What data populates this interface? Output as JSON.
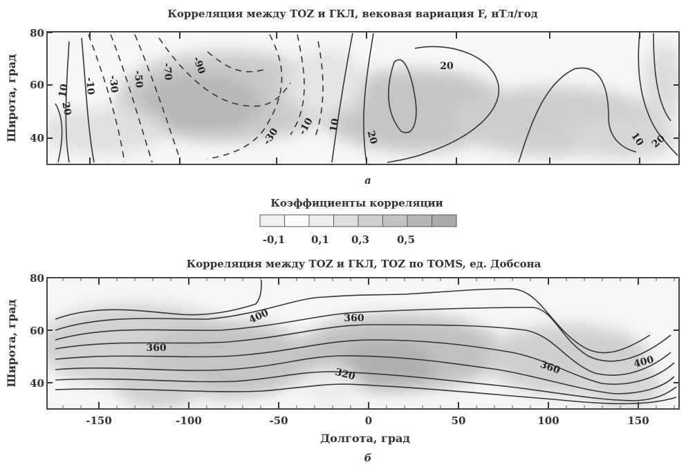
{
  "chart_data": [
    {
      "type": "heatmap",
      "title": "Корреляция между TOZ и ГКЛ, вековая вариация F, нТл/год",
      "panel_label": "а",
      "ylabel": "Широта, град",
      "xlabel": "",
      "xlim": [
        -175,
        175
      ],
      "ylim": [
        30,
        80
      ],
      "yticks": [
        "40",
        "60",
        "80"
      ],
      "contour_labels": [
        "10",
        "-10",
        "-30",
        "-50",
        "-70",
        "-90",
        "20",
        "-30",
        "-10",
        "10",
        "20",
        "20",
        "10",
        "20"
      ]
    },
    {
      "type": "heatmap",
      "title": "Корреляция между TOZ и ГКЛ, TOZ по TOMS, ед. Добсона",
      "panel_label": "б",
      "ylabel": "Широта, град",
      "xlabel": "Долгота, град",
      "xlim": [
        -175,
        175
      ],
      "ylim": [
        30,
        80
      ],
      "xticks": [
        "-150",
        "-100",
        "-50",
        "0",
        "50",
        "100",
        "150"
      ],
      "yticks": [
        "40",
        "60",
        "80"
      ],
      "contour_labels": [
        "400",
        "360",
        "360",
        "320",
        "360",
        "400"
      ]
    }
  ],
  "legend": {
    "title": "Коэффициенты корреляции",
    "tick_labels": [
      "-0,1",
      "0,1",
      "0,3",
      "0,5"
    ],
    "colors": [
      "#efefef",
      "#fbfbfb",
      "#ececec",
      "#dedede",
      "#cfcfcf",
      "#c2c2c2",
      "#b6b6b6",
      "#a9a9a9"
    ]
  }
}
